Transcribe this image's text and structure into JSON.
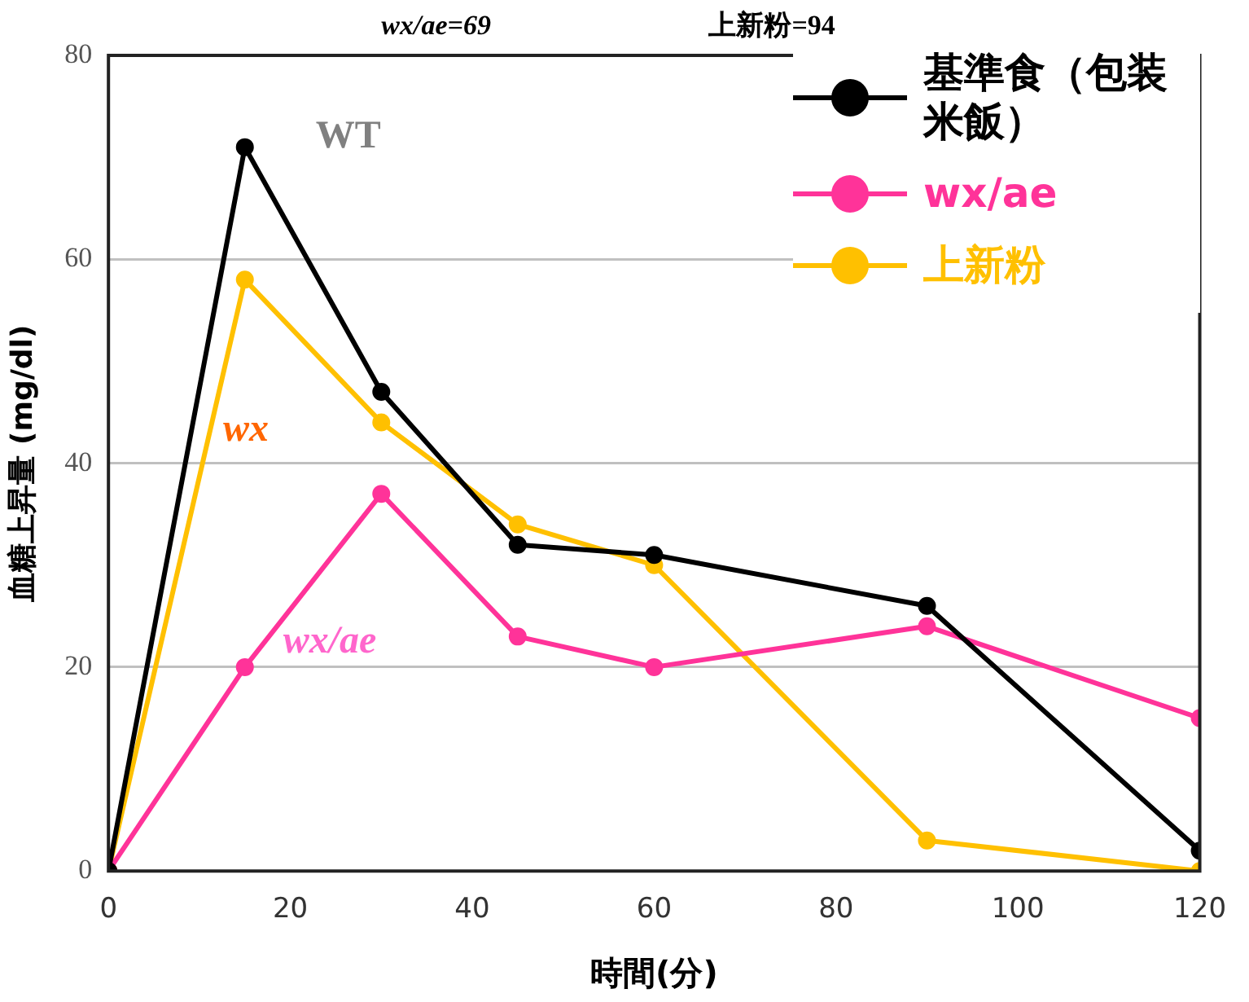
{
  "chart_data": {
    "type": "line",
    "xlabel": "時間(分)",
    "ylabel": "血糖上昇量 (mg/dl)",
    "x": [
      0,
      15,
      30,
      45,
      60,
      90,
      120
    ],
    "series": [
      {
        "name": "基準食（包装米飯）",
        "color": "#000000",
        "values": [
          0,
          71,
          47,
          32,
          31,
          26,
          2
        ]
      },
      {
        "name": "wx/ae",
        "color": "#ff3399",
        "values": [
          0,
          20,
          37,
          23,
          20,
          24,
          15
        ]
      },
      {
        "name": "上新粉",
        "color": "#ffc000",
        "values": [
          0,
          58,
          44,
          34,
          30,
          3,
          0
        ]
      }
    ],
    "xlim": [
      0,
      120
    ],
    "xticks": [
      0,
      20,
      40,
      60,
      80,
      100,
      120
    ],
    "ylim": [
      0,
      80
    ],
    "yticks": [
      0,
      20,
      40,
      60,
      80
    ],
    "grid": "y",
    "legend": "top right",
    "marker": "circle",
    "line_style": "solid",
    "annotations": [
      "WT",
      "wx",
      "wx/ae",
      "wx/ae=69",
      "上新粉=94"
    ]
  }
}
